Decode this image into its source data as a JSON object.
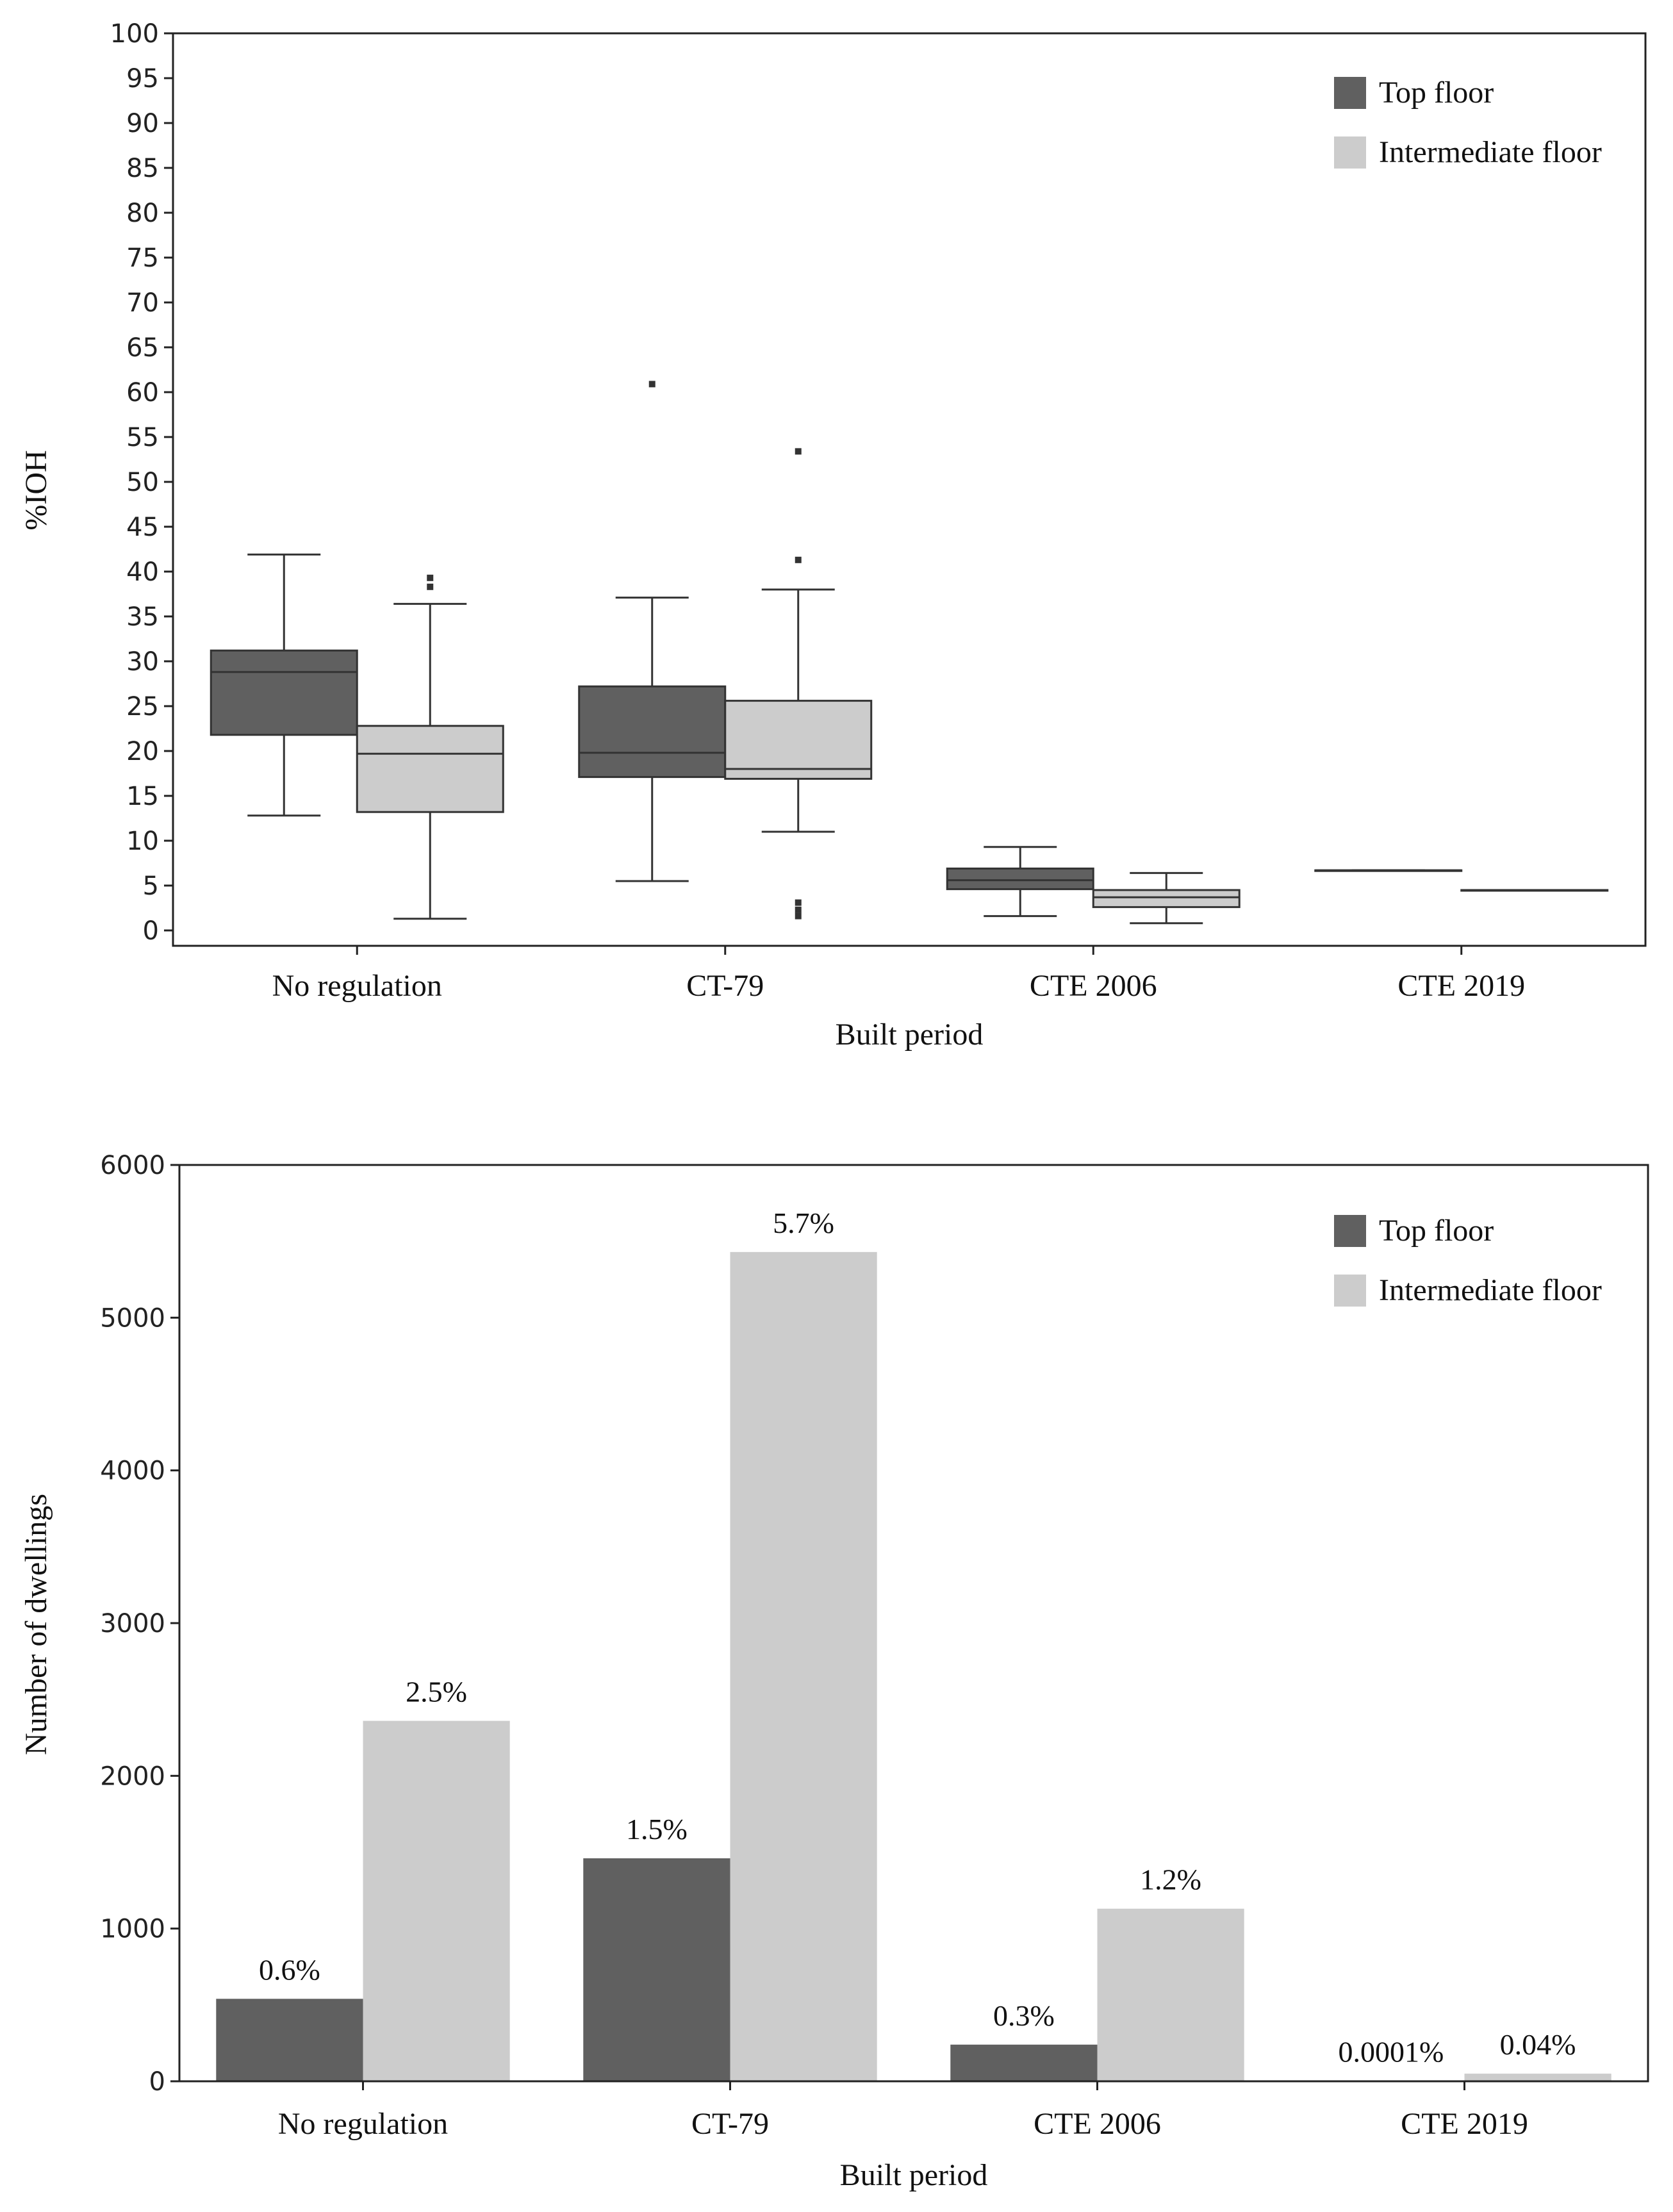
{
  "colors": {
    "top": "#606060",
    "intermediate": "#cccccc",
    "stroke": "#333333",
    "frame": "#222222"
  },
  "chart_data": [
    {
      "type": "box",
      "xlabel": "Built period",
      "ylabel": "%IOH",
      "ylim": [
        0,
        100
      ],
      "yticks": [
        "0",
        "5",
        "10",
        "15",
        "20",
        "25",
        "30",
        "35",
        "40",
        "45",
        "50",
        "55",
        "60",
        "65",
        "70",
        "75",
        "80",
        "85",
        "90",
        "95",
        "100"
      ],
      "categories": [
        "No regulation",
        "CT-79",
        "CTE 2006",
        "CTE 2019"
      ],
      "legend": {
        "placement": "top-right",
        "entries": [
          "Top floor",
          "Intermediate floor"
        ]
      },
      "series": [
        {
          "name": "Top floor",
          "boxes": [
            {
              "whislo": 12.8,
              "q1": 21.8,
              "med": 28.8,
              "q3": 31.2,
              "whishi": 41.9,
              "fliers": []
            },
            {
              "whislo": 5.5,
              "q1": 17.1,
              "med": 19.8,
              "q3": 27.2,
              "whishi": 37.1,
              "fliers": [
                60.9
              ]
            },
            {
              "whislo": 1.6,
              "q1": 4.6,
              "med": 5.6,
              "q3": 6.9,
              "whishi": 9.3,
              "fliers": []
            },
            {
              "whislo": 6.7,
              "q1": 6.7,
              "med": 6.7,
              "q3": 6.7,
              "whishi": 6.7,
              "fliers": []
            }
          ]
        },
        {
          "name": "Intermediate floor",
          "boxes": [
            {
              "whislo": 1.3,
              "q1": 13.2,
              "med": 19.7,
              "q3": 22.8,
              "whishi": 36.4,
              "fliers": [
                38.3,
                39.3
              ]
            },
            {
              "whislo": 11.0,
              "q1": 16.9,
              "med": 18.0,
              "q3": 25.6,
              "whishi": 38.0,
              "fliers": [
                41.3,
                53.4,
                1.6,
                2.3,
                3.1
              ]
            },
            {
              "whislo": 0.8,
              "q1": 2.6,
              "med": 3.7,
              "q3": 4.5,
              "whishi": 6.4,
              "fliers": []
            },
            {
              "whislo": 4.5,
              "q1": 4.5,
              "med": 4.5,
              "q3": 4.5,
              "whishi": 4.5,
              "fliers": []
            }
          ]
        }
      ]
    },
    {
      "type": "bar",
      "xlabel": "Built period",
      "ylabel": "Number of dwellings",
      "ylim": [
        0,
        6000
      ],
      "yticks": [
        "0",
        "1000",
        "2000",
        "3000",
        "4000",
        "5000",
        "6000"
      ],
      "categories": [
        "No regulation",
        "CT-79",
        "CTE 2006",
        "CTE 2019"
      ],
      "legend": {
        "placement": "top-right",
        "entries": [
          "Top floor",
          "Intermediate floor"
        ]
      },
      "series": [
        {
          "name": "Top floor",
          "values": [
            540,
            1460,
            240,
            2
          ],
          "labels": [
            "0.6%",
            "1.5%",
            "0.3%",
            "0.0001%"
          ]
        },
        {
          "name": "Intermediate floor",
          "values": [
            2360,
            5430,
            1130,
            50
          ],
          "labels": [
            "2.5%",
            "5.7%",
            "1.2%",
            "0.04%"
          ]
        }
      ]
    }
  ]
}
